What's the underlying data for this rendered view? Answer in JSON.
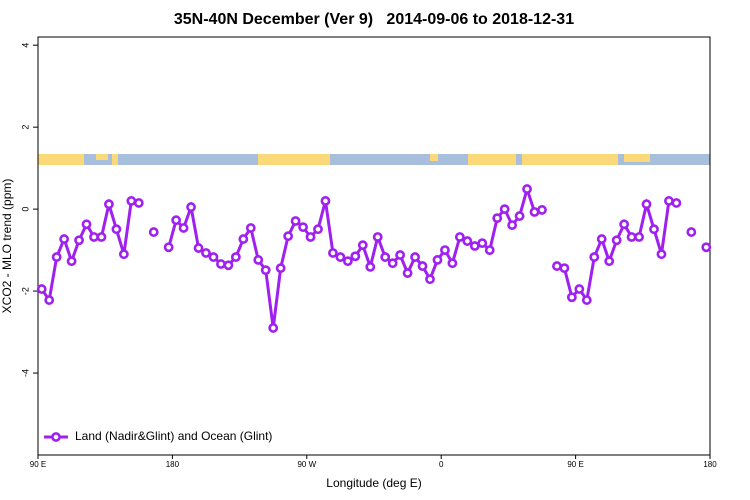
{
  "chart_data": {
    "type": "line",
    "title": "35N-40N December (Ver 9)   2014-09-06 to 2018-12-31",
    "xlabel": "Longitude (deg E)",
    "ylabel": "XCO2 - MLO trend (ppm)",
    "xlim": [
      90,
      540
    ],
    "xticks": [
      {
        "value": 90,
        "label": "90 E"
      },
      {
        "value": 180,
        "label": "180"
      },
      {
        "value": 270,
        "label": "90 W"
      },
      {
        "value": 360,
        "label": "0"
      },
      {
        "value": 450,
        "label": "90 E"
      },
      {
        "value": 540,
        "label": "180"
      }
    ],
    "ylim": [
      -6,
      4.2
    ],
    "yticks": [
      4,
      2,
      0,
      -2,
      -4
    ],
    "legend": "bottom-left",
    "x": [
      92.5,
      97.5,
      102.5,
      107.5,
      112.5,
      117.5,
      122.5,
      127.5,
      132.5,
      137.5,
      142.5,
      147.5,
      152.5,
      157.5,
      162.5,
      167.5,
      172.5,
      177.5,
      182.5,
      187.5,
      192.5,
      197.5,
      202.5,
      207.5,
      212.5,
      217.5,
      222.5,
      227.5,
      232.5,
      237.5,
      242.5,
      247.5,
      252.5,
      257.5,
      262.5,
      267.5,
      272.5,
      277.5,
      282.5,
      287.5,
      292.5,
      297.5,
      302.5,
      307.5,
      312.5,
      317.5,
      322.5,
      327.5,
      332.5,
      337.5,
      342.5,
      347.5,
      352.5,
      357.5,
      362.5,
      367.5,
      372.5,
      377.5,
      382.5,
      387.5,
      392.5,
      397.5,
      402.5,
      407.5,
      412.5,
      417.5,
      422.5,
      427.5,
      432.5,
      437.5,
      442.5,
      447.5,
      452.5,
      457.5,
      462.5,
      467.5,
      472.5,
      477.5,
      482.5,
      487.5,
      492.5,
      497.5,
      502.5,
      507.5,
      512.5,
      517.5,
      522.5,
      527.5,
      532.5,
      537.5
    ],
    "series": [
      {
        "name": "Land (Nadir&Glint) and Ocean (Glint)",
        "color": "#a020f0",
        "values": [
          -1.95,
          -2.22,
          -1.17,
          -0.73,
          -1.27,
          -0.76,
          -0.37,
          -0.68,
          -0.68,
          0.12,
          -0.49,
          -1.1,
          0.2,
          0.15,
          null,
          -0.56,
          null,
          -0.93,
          -0.27,
          -0.46,
          0.05,
          -0.95,
          -1.07,
          -1.17,
          -1.34,
          -1.37,
          -1.17,
          -0.73,
          -0.46,
          -1.24,
          -1.49,
          -2.9,
          -1.44,
          -0.66,
          -0.29,
          -0.44,
          -0.68,
          -0.49,
          0.2,
          -1.07,
          -1.17,
          -1.27,
          -1.15,
          -0.88,
          -1.41,
          -0.68,
          -1.17,
          -1.32,
          -1.12,
          -1.56,
          -1.17,
          -1.39,
          -1.71,
          -1.24,
          -1.0,
          -1.32,
          -0.68,
          -0.78,
          -0.9,
          -0.83,
          -1.0,
          -0.22,
          0.0,
          -0.39,
          -0.17,
          0.49,
          -0.07,
          -0.02,
          null,
          -1.39,
          -1.44,
          -2.15,
          -1.95,
          -2.22,
          -1.17,
          -0.73,
          -1.27,
          -0.76,
          -0.37,
          -0.68,
          -0.68,
          0.12,
          -0.49,
          -1.1,
          0.2,
          0.15,
          null,
          -0.56,
          null,
          -0.93
        ]
      }
    ]
  }
}
